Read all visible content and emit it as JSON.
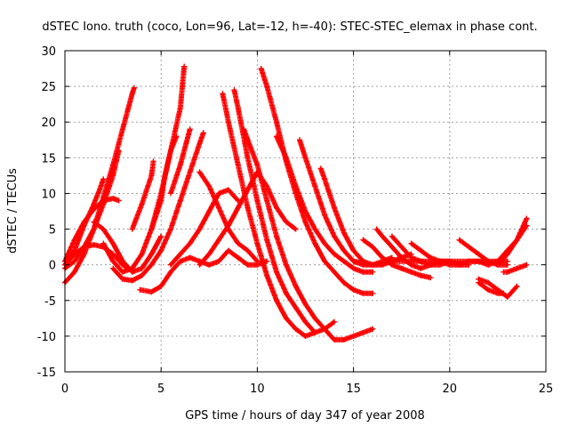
{
  "chart_data": {
    "type": "scatter",
    "title": "dSTEC Iono. truth (coco, Lon=96, Lat=-12, h=-40): STEC-STEC_elemax in phase cont.",
    "xlabel": "GPS time / hours of day 347 of year 2008",
    "ylabel": "dSTEC  / TECUs",
    "xlim": [
      0,
      25
    ],
    "ylim": [
      -15,
      30
    ],
    "x_ticks": [
      0,
      5,
      10,
      15,
      20,
      25
    ],
    "y_ticks": [
      -15,
      -10,
      -5,
      0,
      5,
      10,
      15,
      20,
      25,
      30
    ],
    "grid": true,
    "marker": "plus",
    "color": "#ff0000",
    "series": [
      {
        "x": [
          0.0,
          0.5,
          1.0,
          1.5,
          2.0,
          2.5,
          3.0,
          3.3,
          3.5,
          3.6
        ],
        "values": [
          -2.5,
          -1.0,
          1.5,
          5.0,
          9.5,
          14.0,
          19.0,
          22.0,
          24.0,
          24.8
        ]
      },
      {
        "x": [
          0.0,
          0.5,
          1.0,
          1.5,
          2.0,
          2.5,
          2.8
        ],
        "values": [
          -0.5,
          0.5,
          2.5,
          5.0,
          8.5,
          12.5,
          16.0
        ]
      },
      {
        "x": [
          0.0,
          0.5,
          1.0,
          1.5,
          1.8,
          2.0
        ],
        "values": [
          0.0,
          2.0,
          5.5,
          8.5,
          10.5,
          12.0
        ]
      },
      {
        "x": [
          0.0,
          0.5,
          1.0,
          1.5,
          2.0,
          2.5,
          2.8
        ],
        "values": [
          0.5,
          3.5,
          6.0,
          7.8,
          9.0,
          9.3,
          9.0
        ]
      },
      {
        "x": [
          0.0,
          0.5,
          1.0,
          1.5,
          2.0,
          2.5,
          3.0,
          3.3
        ],
        "values": [
          0.0,
          1.5,
          2.5,
          2.8,
          2.5,
          1.5,
          0.0,
          -0.5
        ]
      },
      {
        "x": [
          1.5,
          2.0,
          2.5,
          3.0,
          3.5,
          4.0,
          4.5,
          5.0
        ],
        "values": [
          6.0,
          5.0,
          3.0,
          0.5,
          -1.0,
          -0.5,
          1.5,
          4.0
        ]
      },
      {
        "x": [
          2.0,
          2.5,
          3.0,
          3.5,
          4.0,
          4.5,
          5.0,
          5.5,
          6.0,
          6.2
        ],
        "values": [
          3.0,
          0.5,
          -1.0,
          -0.5,
          1.5,
          5.0,
          10.0,
          16.0,
          22.0,
          27.8
        ]
      },
      {
        "x": [
          2.5,
          3.0,
          3.5,
          4.0,
          4.5,
          5.0,
          5.5,
          6.0,
          6.5,
          7.0,
          7.2
        ],
        "values": [
          -0.5,
          -2.0,
          -2.2,
          -1.5,
          0.0,
          2.0,
          5.0,
          9.0,
          13.0,
          17.0,
          18.5
        ]
      },
      {
        "x": [
          3.5,
          4.0,
          4.5,
          4.6
        ],
        "values": [
          5.0,
          8.5,
          12.5,
          14.5
        ]
      },
      {
        "x": [
          4.5,
          5.0,
          5.2,
          5.5,
          5.8
        ],
        "values": [
          5.0,
          9.0,
          12.5,
          16.0,
          18.0
        ]
      },
      {
        "x": [
          5.5,
          6.0,
          6.3,
          6.5
        ],
        "values": [
          10.0,
          14.0,
          17.0,
          19.0
        ]
      },
      {
        "x": [
          3.9,
          4.5,
          5.0,
          5.5,
          6.0,
          6.5,
          7.0,
          7.5,
          8.0,
          8.5,
          9.0,
          9.5,
          10.0,
          10.5
        ],
        "values": [
          -3.5,
          -3.8,
          -3.0,
          -1.0,
          0.5,
          1.0,
          0.5,
          0.0,
          0.5,
          2.0,
          1.0,
          0.0,
          0.0,
          0.5
        ]
      },
      {
        "x": [
          5.5,
          6.0,
          6.5,
          7.0,
          7.5,
          8.0,
          8.5,
          9.0
        ],
        "values": [
          0.0,
          1.5,
          3.0,
          5.0,
          7.5,
          10.0,
          10.5,
          9.0
        ]
      },
      {
        "x": [
          7.0,
          7.5,
          8.0,
          8.5,
          9.0,
          9.5,
          10.0
        ],
        "values": [
          13.0,
          11.0,
          8.0,
          5.0,
          3.0,
          2.0,
          0.5
        ]
      },
      {
        "x": [
          7.0,
          7.5,
          8.0,
          8.5,
          9.0,
          9.5,
          10.0,
          10.5,
          11.0,
          11.5,
          12.0
        ],
        "values": [
          0.0,
          1.5,
          3.5,
          5.5,
          8.0,
          10.5,
          13.0,
          11.0,
          8.0,
          6.0,
          5.0
        ]
      },
      {
        "x": [
          8.2,
          8.5,
          9.0,
          9.5,
          10.0,
          10.5,
          11.0,
          11.5,
          12.0,
          12.5,
          13.0,
          13.5,
          14.0
        ],
        "values": [
          24.0,
          20.0,
          14.0,
          8.0,
          3.0,
          -1.5,
          -5.0,
          -7.5,
          -9.0,
          -10.0,
          -9.5,
          -9.0,
          -8.0
        ]
      },
      {
        "x": [
          8.8,
          9.0,
          9.5,
          10.0,
          10.5,
          11.0,
          11.5,
          12.0,
          12.5,
          13.0
        ],
        "values": [
          24.5,
          22.0,
          15.0,
          9.0,
          3.5,
          -1.0,
          -4.0,
          -6.0,
          -8.0,
          -9.5
        ]
      },
      {
        "x": [
          9.3,
          9.5,
          10.0,
          10.5,
          11.0,
          11.5,
          12.0,
          12.5,
          13.0,
          13.5,
          14.0,
          14.5,
          15.0,
          15.5,
          16.0
        ],
        "values": [
          19.0,
          17.5,
          14.0,
          9.0,
          4.0,
          0.0,
          -3.0,
          -5.5,
          -7.5,
          -9.0,
          -10.5,
          -10.5,
          -10.0,
          -9.5,
          -9.0
        ]
      },
      {
        "x": [
          10.2,
          10.5,
          11.0,
          11.5,
          12.0,
          12.5,
          13.0,
          13.5,
          14.0,
          14.5,
          15.0,
          15.5,
          16.0
        ],
        "values": [
          27.5,
          25.0,
          20.0,
          14.5,
          10.0,
          6.0,
          3.0,
          0.5,
          -1.0,
          -2.5,
          -3.5,
          -4.0,
          -4.0
        ]
      },
      {
        "x": [
          11.0,
          11.5,
          12.0,
          12.5,
          13.0,
          13.5,
          14.0,
          14.5,
          15.0,
          15.5,
          16.0
        ],
        "values": [
          18.0,
          15.0,
          11.0,
          7.5,
          5.0,
          3.0,
          1.5,
          0.5,
          -0.5,
          -1.0,
          -1.0
        ]
      },
      {
        "x": [
          12.2,
          12.5,
          13.0,
          13.5,
          14.0,
          14.5,
          15.0,
          15.5,
          16.0,
          16.5,
          17.0
        ],
        "values": [
          17.5,
          15.0,
          11.0,
          7.0,
          4.0,
          2.0,
          0.5,
          0.0,
          0.0,
          0.5,
          1.0
        ]
      },
      {
        "x": [
          13.3,
          13.5,
          14.0,
          14.5,
          15.0,
          15.5,
          16.0,
          16.5,
          17.0,
          17.5,
          18.0
        ],
        "values": [
          13.5,
          12.0,
          8.0,
          4.5,
          2.0,
          0.5,
          0.0,
          0.0,
          0.5,
          1.0,
          1.5
        ]
      },
      {
        "x": [
          15.5,
          16.0,
          16.5,
          17.0,
          17.5,
          18.0,
          18.5,
          19.0
        ],
        "values": [
          3.5,
          2.5,
          1.0,
          0.0,
          -0.5,
          -1.0,
          -1.5,
          -1.8
        ]
      },
      {
        "x": [
          16.2,
          16.5,
          17.0,
          17.5,
          18.0,
          18.5,
          19.0,
          19.5,
          20.0
        ],
        "values": [
          5.0,
          4.0,
          2.5,
          1.0,
          0.0,
          -0.5,
          0.0,
          0.0,
          0.5
        ]
      },
      {
        "x": [
          17.0,
          17.5,
          18.0,
          18.5,
          19.0,
          19.5,
          20.0,
          20.5,
          21.0
        ],
        "values": [
          4.0,
          2.5,
          1.0,
          0.5,
          0.0,
          0.5,
          0.5,
          0.0,
          0.0
        ]
      },
      {
        "x": [
          18.0,
          18.5,
          19.0,
          19.5,
          20.0,
          20.5,
          21.0,
          21.5,
          22.0
        ],
        "values": [
          3.0,
          2.0,
          1.0,
          0.5,
          0.0,
          0.0,
          0.5,
          0.5,
          0.0
        ]
      },
      {
        "x": [
          20.5,
          21.0,
          21.5,
          22.0,
          22.5,
          23.0
        ],
        "values": [
          3.5,
          2.5,
          1.5,
          0.5,
          0.0,
          0.0
        ]
      },
      {
        "x": [
          15.0,
          16.0,
          17.0,
          18.0,
          19.0,
          20.0,
          21.0,
          22.0,
          23.0
        ],
        "values": [
          0.5,
          0.0,
          0.5,
          0.5,
          0.5,
          0.5,
          0.5,
          0.5,
          0.5
        ]
      },
      {
        "x": [
          22.5,
          23.0,
          23.5,
          24.0
        ],
        "values": [
          0.0,
          1.5,
          3.5,
          6.5
        ]
      },
      {
        "x": [
          22.0,
          22.5,
          23.0,
          23.5,
          24.0
        ],
        "values": [
          0.0,
          0.5,
          2.0,
          3.5,
          5.5
        ]
      },
      {
        "x": [
          22.8,
          23.0,
          23.5,
          24.0
        ],
        "values": [
          -1.0,
          -1.0,
          -0.5,
          0.0
        ]
      },
      {
        "x": [
          21.5,
          22.0,
          22.5,
          22.8
        ],
        "values": [
          -2.5,
          -3.5,
          -4.0,
          -4.0
        ]
      },
      {
        "x": [
          21.5,
          22.0,
          22.5,
          23.0,
          23.5
        ],
        "values": [
          -2.0,
          -2.5,
          -3.5,
          -4.5,
          -3.0
        ]
      }
    ]
  }
}
